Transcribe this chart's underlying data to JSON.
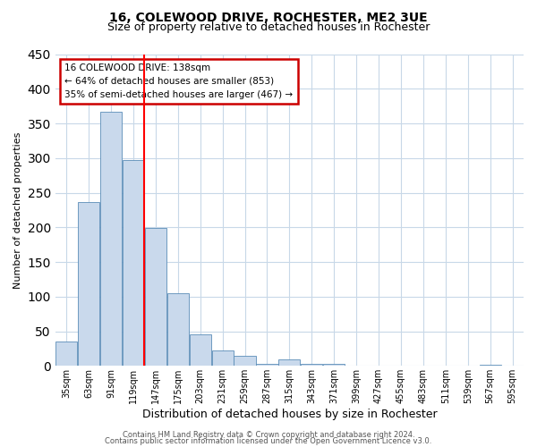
{
  "title": "16, COLEWOOD DRIVE, ROCHESTER, ME2 3UE",
  "subtitle": "Size of property relative to detached houses in Rochester",
  "xlabel": "Distribution of detached houses by size in Rochester",
  "ylabel": "Number of detached properties",
  "bar_labels": [
    "35sqm",
    "63sqm",
    "91sqm",
    "119sqm",
    "147sqm",
    "175sqm",
    "203sqm",
    "231sqm",
    "259sqm",
    "287sqm",
    "315sqm",
    "343sqm",
    "371sqm",
    "399sqm",
    "427sqm",
    "455sqm",
    "483sqm",
    "511sqm",
    "539sqm",
    "567sqm",
    "595sqm"
  ],
  "bar_values": [
    35,
    236,
    367,
    297,
    199,
    105,
    45,
    22,
    14,
    3,
    10,
    3,
    3,
    0,
    0,
    0,
    0,
    0,
    0,
    2,
    0
  ],
  "bar_color": "#c9d9ec",
  "bar_edge_color": "#5b8db8",
  "property_line_idx": 3.5,
  "annotation_title": "16 COLEWOOD DRIVE: 138sqm",
  "annotation_line1": "← 64% of detached houses are smaller (853)",
  "annotation_line2": "35% of semi-detached houses are larger (467) →",
  "annotation_box_color": "#cc0000",
  "ylim": [
    0,
    450
  ],
  "yticks": [
    0,
    50,
    100,
    150,
    200,
    250,
    300,
    350,
    400,
    450
  ],
  "footer1": "Contains HM Land Registry data © Crown copyright and database right 2024.",
  "footer2": "Contains public sector information licensed under the Open Government Licence v3.0.",
  "background_color": "#ffffff",
  "grid_color": "#c8d8e8"
}
